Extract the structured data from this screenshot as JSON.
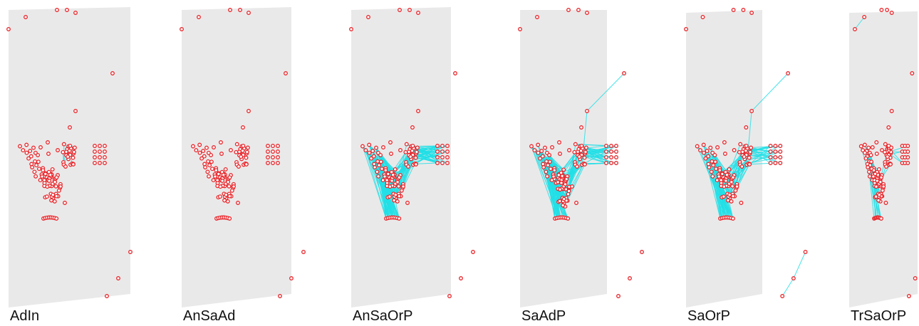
{
  "panels": [
    {
      "label": "AdIn"
    },
    {
      "label": "AnSaAd"
    },
    {
      "label": "AnSaOrP"
    },
    {
      "label": "SaAdP"
    },
    {
      "label": "SaOrP"
    },
    {
      "label": "TrSaOrP"
    }
  ],
  "colors": {
    "plane": "#eae9e9",
    "node_fill": "#ffffff",
    "node_stroke": "#e8262b",
    "edge": "#22dfe6",
    "text": "#111111"
  }
}
